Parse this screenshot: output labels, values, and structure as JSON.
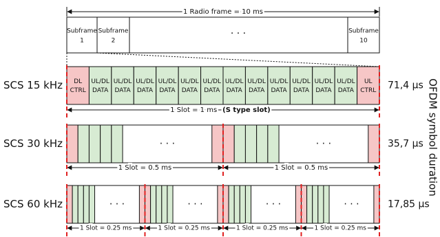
{
  "radio_frame": {
    "label": "1 Radio frame = 10 ms",
    "subframes": [
      {
        "label": "Subframe",
        "number": "1"
      },
      {
        "label": "Subframe",
        "number": "2"
      },
      {
        "label": "Subframe",
        "number": "10"
      }
    ],
    "ellipsis": "· · ·"
  },
  "rows": [
    {
      "label": "SCS 15 kHz",
      "duration": "71,4 µs",
      "symbols": [
        [
          "DL",
          "CTRL"
        ],
        [
          "UL/DL",
          "DATA"
        ],
        [
          "UL/DL",
          "DATA"
        ],
        [
          "UL/DL",
          "DATA"
        ],
        [
          "UL/DL",
          "DATA"
        ],
        [
          "UL/DL",
          "DATA"
        ],
        [
          "UL/DL",
          "DATA"
        ],
        [
          "UL/DL",
          "DATA"
        ],
        [
          "UL/DL",
          "DATA"
        ],
        [
          "UL/DL",
          "DATA"
        ],
        [
          "UL/DL",
          "DATA"
        ],
        [
          "UL/DL",
          "DATA"
        ],
        [
          "UL/DL",
          "DATA"
        ],
        [
          "UL",
          "CTRL"
        ]
      ],
      "slot_label": "1 Slot = 1 ms",
      "slot_note": "(S type slot)"
    },
    {
      "label": "SCS 30 kHz",
      "duration": "35,7 µs",
      "slots": [
        {
          "label": "1 Slot = 0.5 ms",
          "ellipsis": "· · ·"
        },
        {
          "label": "1 Slot = 0.5 ms",
          "ellipsis": "· · ·"
        }
      ]
    },
    {
      "label": "SCS 60 kHz",
      "duration": "17,85 µs",
      "slots": [
        {
          "label": "1 Slot = 0.25 ms",
          "ellipsis": "· · ·"
        },
        {
          "label": "1 Slot = 0.25 ms",
          "ellipsis": "· · ·"
        },
        {
          "label": "1 Slot = 0.25 ms",
          "ellipsis": "· · ·"
        },
        {
          "label": "1 Slot = 0.25 ms",
          "ellipsis": "· · ·"
        }
      ]
    }
  ],
  "axis_label": "OFDM symbol duration"
}
